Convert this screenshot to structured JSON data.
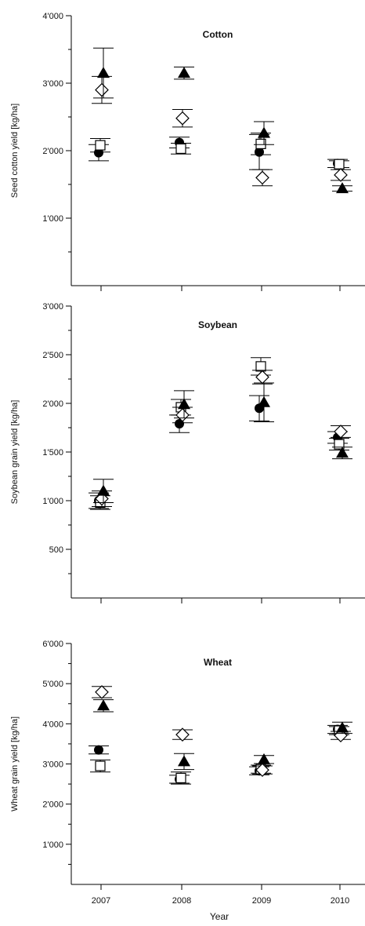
{
  "xlabel": "Year",
  "x_ticks": [
    "2007",
    "2008",
    "2009",
    "2010"
  ],
  "chart_data": [
    {
      "type": "scatter",
      "title": "Cotton",
      "ylabel": "Seed cotton yield [kg/ha]",
      "ylim": [
        0,
        4000
      ],
      "y_ticks": [
        "1'000",
        "2'000",
        "3'000",
        "4'000"
      ],
      "x": [
        "2007",
        "2008",
        "2009",
        "2010"
      ],
      "series": [
        {
          "marker": "circle-filled",
          "values": [
            1970,
            2120,
            1980,
            1810
          ],
          "err": [
            120,
            80,
            260,
            60
          ]
        },
        {
          "marker": "square-open",
          "values": [
            2080,
            2030,
            2100,
            1800
          ],
          "err": [
            100,
            80,
            160,
            50
          ]
        },
        {
          "marker": "diamond-open",
          "values": [
            2900,
            2480,
            1600,
            1640
          ],
          "err": [
            200,
            130,
            120,
            80
          ]
        },
        {
          "marker": "triangle-filled",
          "values": [
            3150,
            3150,
            2260,
            1440
          ],
          "err": [
            370,
            90,
            170,
            40
          ]
        }
      ]
    },
    {
      "type": "scatter",
      "title": "Soybean",
      "ylabel": "Soybean grain yield [kg/ha]",
      "ylim": [
        0,
        3000
      ],
      "y_ticks": [
        "500",
        "1'000",
        "1'500",
        "2'000",
        "2'500",
        "3'000"
      ],
      "x": [
        "2007",
        "2008",
        "2009",
        "2010"
      ],
      "series": [
        {
          "marker": "circle-filled",
          "values": [
            1000,
            1790,
            1950,
            1650
          ],
          "err": [
            80,
            90,
            130,
            60
          ]
        },
        {
          "marker": "square-open",
          "values": [
            980,
            1960,
            2380,
            1580
          ],
          "err": [
            70,
            80,
            90,
            60
          ]
        },
        {
          "marker": "diamond-open",
          "values": [
            1020,
            1880,
            2270,
            1710
          ],
          "err": [
            80,
            80,
            70,
            60
          ]
        },
        {
          "marker": "triangle-filled",
          "values": [
            1100,
            1990,
            2010,
            1490
          ],
          "err": [
            120,
            140,
            200,
            60
          ]
        }
      ]
    },
    {
      "type": "scatter",
      "title": "Wheat",
      "ylabel": "Wheat grain yield [kg/ha]",
      "ylim": [
        0,
        6000
      ],
      "y_ticks": [
        "1'000",
        "2'000",
        "3'000",
        "4'000",
        "5'000",
        "6'000"
      ],
      "x": [
        "2007",
        "2008",
        "2009",
        "2010"
      ],
      "series": [
        {
          "marker": "circle-filled",
          "values": [
            3350,
            2620,
            2830,
            3860
          ],
          "err": [
            100,
            100,
            100,
            100
          ]
        },
        {
          "marker": "square-open",
          "values": [
            2950,
            2650,
            2870,
            3830
          ],
          "err": [
            150,
            150,
            100,
            100
          ]
        },
        {
          "marker": "diamond-open",
          "values": [
            4790,
            3730,
            2850,
            3710
          ],
          "err": [
            140,
            120,
            100,
            100
          ]
        },
        {
          "marker": "triangle-filled",
          "values": [
            4450,
            3060,
            3110,
            3900
          ],
          "err": [
            150,
            200,
            100,
            140
          ]
        }
      ]
    }
  ]
}
